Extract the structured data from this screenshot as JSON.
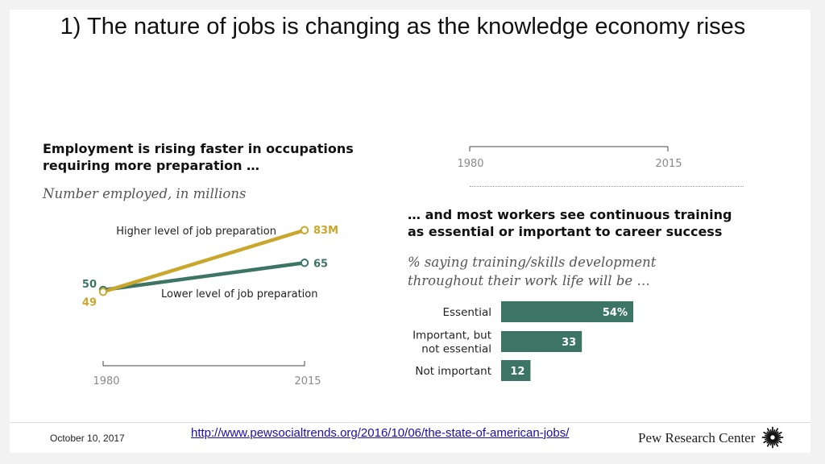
{
  "slide": {
    "title": "1) The nature of jobs is changing as the knowledge economy rises"
  },
  "colors": {
    "gold": "#c9a62c",
    "green": "#3d7564",
    "bar": "#3d7564",
    "axis": "#444444"
  },
  "chart_data": [
    {
      "type": "line",
      "title": "Employment is rising faster in occupations requiring more preparation …",
      "subtitle": "Number employed, in millions",
      "x": [
        "1980",
        "2015"
      ],
      "series": [
        {
          "name": "Higher level of job preparation",
          "values": [
            49,
            83
          ],
          "labels": [
            "49",
            "83M"
          ],
          "color": "#c9a62c"
        },
        {
          "name": "Lower level of job preparation",
          "values": [
            50,
            65
          ],
          "labels": [
            "50",
            "65"
          ],
          "color": "#3d7564"
        }
      ],
      "ylim": [
        30,
        90
      ]
    },
    {
      "type": "bar",
      "title": "… and most workers see continuous training as essential or important to career success",
      "subtitle": "% saying training/skills development throughout their work life will be …",
      "categories": [
        "Essential",
        "Important, but not essential",
        "Not important"
      ],
      "category_lines": [
        [
          "Essential"
        ],
        [
          "Important, but",
          "not essential"
        ],
        [
          "Not important"
        ]
      ],
      "values": [
        54,
        33,
        12
      ],
      "value_labels": [
        "54%",
        "33",
        "12"
      ],
      "xlim": [
        0,
        100
      ]
    }
  ],
  "stray_axis": {
    "ticks": [
      "1980",
      "2015"
    ]
  },
  "footer": {
    "date": "October 10, 2017",
    "link": "http://www.pewsocialtrends.org/2016/10/06/the-state-of-american-jobs/",
    "brand": "Pew Research Center",
    "logo_icon": "pew-starburst-icon"
  }
}
